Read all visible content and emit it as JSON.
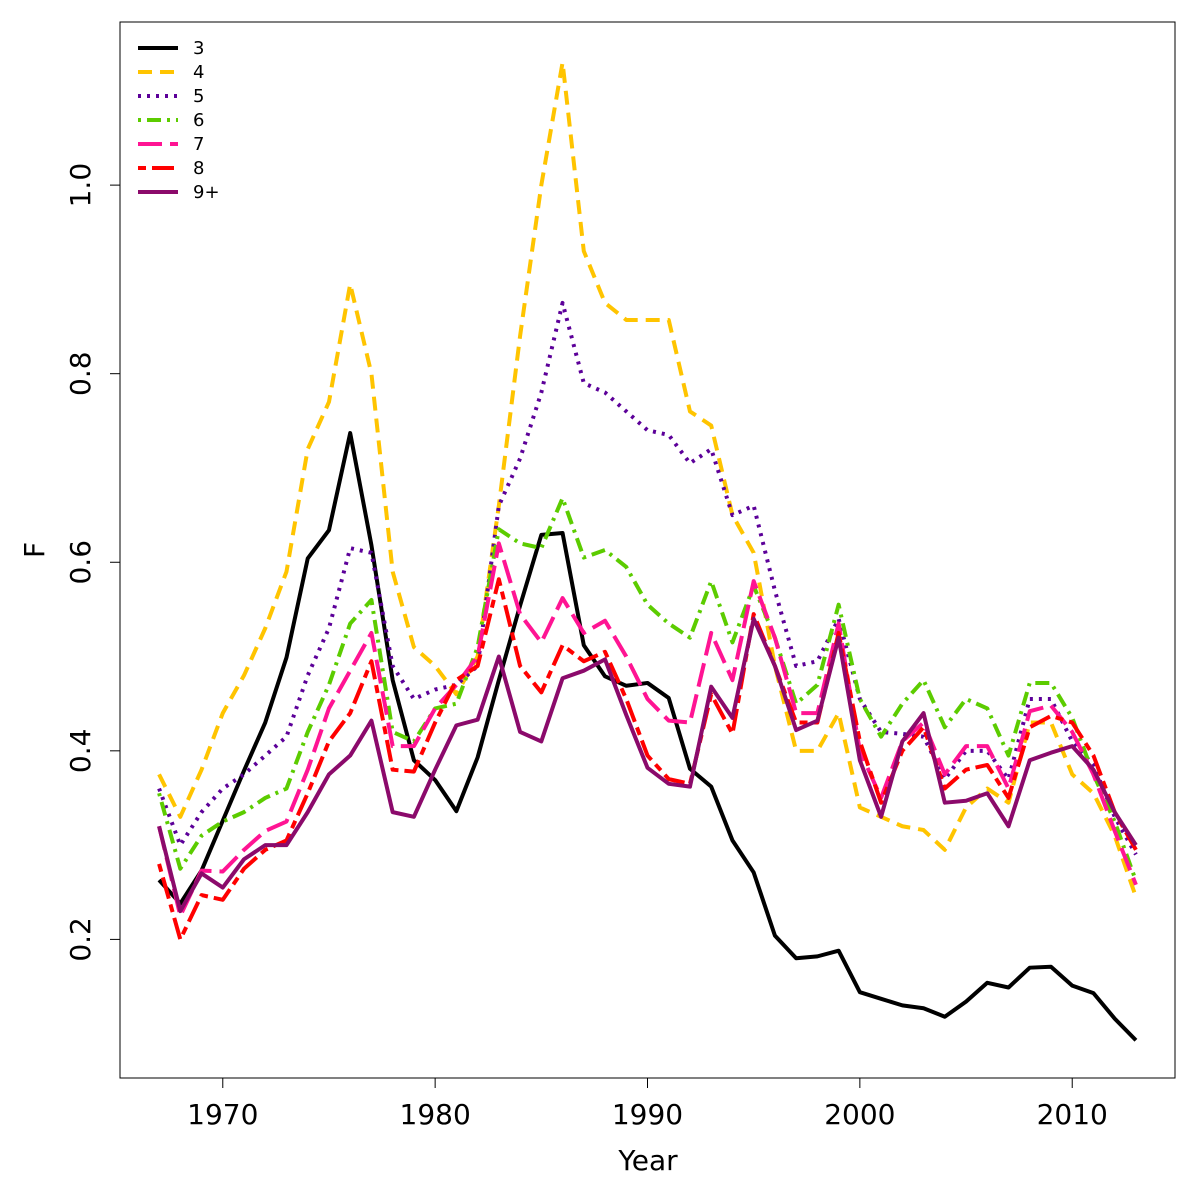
{
  "chart_data": {
    "type": "line",
    "x_label": "Year",
    "y_label": "F",
    "x": [
      1967,
      1968,
      1969,
      1970,
      1971,
      1972,
      1973,
      1974,
      1975,
      1976,
      1977,
      1978,
      1979,
      1980,
      1981,
      1982,
      1983,
      1984,
      1985,
      1986,
      1987,
      1988,
      1989,
      1990,
      1991,
      1992,
      1993,
      1994,
      1995,
      1996,
      1997,
      1998,
      1999,
      2000,
      2001,
      2002,
      2003,
      2004,
      2005,
      2006,
      2007,
      2008,
      2009,
      2010,
      2011,
      2012,
      2013
    ],
    "xlim": [
      1965.16,
      2014.84
    ],
    "xticks": [
      1970,
      1980,
      1990,
      2000,
      2010
    ],
    "ylim": [
      0.053,
      1.173
    ],
    "yticks": [
      0.2,
      0.4,
      0.6,
      0.8,
      {
        "value": 1,
        "label": "1.0"
      }
    ],
    "legend": "top-left",
    "series": [
      {
        "name": "3",
        "color": "#000000",
        "dash": "solid",
        "values": [
          0.263,
          0.238,
          0.273,
          0.326,
          0.379,
          0.43,
          0.499,
          0.604,
          0.634,
          0.737,
          0.618,
          0.475,
          0.39,
          0.369,
          0.336,
          0.393,
          0.475,
          0.554,
          0.629,
          0.631,
          0.512,
          0.479,
          0.469,
          0.472,
          0.456,
          0.381,
          0.362,
          0.305,
          0.271,
          0.204,
          0.18,
          0.182,
          0.188,
          0.144,
          0.137,
          0.13,
          0.127,
          0.118,
          0.134,
          0.154,
          0.149,
          0.17,
          0.171,
          0.151,
          0.143,
          0.116,
          0.093
        ]
      },
      {
        "name": "4",
        "color": "#ffc400",
        "dash": "dashed",
        "values": [
          0.375,
          0.33,
          0.38,
          0.44,
          0.48,
          0.53,
          0.59,
          0.72,
          0.77,
          0.895,
          0.8,
          0.59,
          0.51,
          0.49,
          0.46,
          0.5,
          0.66,
          0.84,
          1.0,
          1.13,
          0.93,
          0.875,
          0.857,
          0.857,
          0.857,
          0.76,
          0.745,
          0.65,
          0.61,
          0.49,
          0.4,
          0.4,
          0.44,
          0.34,
          0.33,
          0.32,
          0.316,
          0.295,
          0.34,
          0.36,
          0.345,
          0.43,
          0.43,
          0.375,
          0.355,
          0.31,
          0.245
        ]
      },
      {
        "name": "5",
        "color": "#5c0099",
        "dash": "dotted",
        "values": [
          0.36,
          0.3,
          0.335,
          0.36,
          0.375,
          0.395,
          0.415,
          0.48,
          0.53,
          0.615,
          0.61,
          0.49,
          0.455,
          0.465,
          0.47,
          0.49,
          0.66,
          0.71,
          0.78,
          0.875,
          0.79,
          0.78,
          0.76,
          0.74,
          0.735,
          0.705,
          0.72,
          0.65,
          0.66,
          0.57,
          0.49,
          0.495,
          0.54,
          0.455,
          0.42,
          0.418,
          0.415,
          0.37,
          0.4,
          0.4,
          0.37,
          0.455,
          0.455,
          0.41,
          0.385,
          0.33,
          0.29
        ]
      },
      {
        "name": "6",
        "color": "#5ccc00",
        "dash": "dotdash",
        "values": [
          0.355,
          0.275,
          0.31,
          0.325,
          0.335,
          0.35,
          0.36,
          0.42,
          0.47,
          0.535,
          0.56,
          0.42,
          0.41,
          0.445,
          0.45,
          0.51,
          0.635,
          0.62,
          0.615,
          0.668,
          0.605,
          0.613,
          0.595,
          0.555,
          0.535,
          0.52,
          0.58,
          0.515,
          0.575,
          0.52,
          0.45,
          0.47,
          0.555,
          0.455,
          0.415,
          0.45,
          0.475,
          0.425,
          0.455,
          0.445,
          0.395,
          0.472,
          0.472,
          0.435,
          0.375,
          0.325,
          0.262
        ]
      },
      {
        "name": "7",
        "color": "#ff1493",
        "dash": "longdash",
        "values": [
          0.32,
          0.225,
          0.273,
          0.272,
          0.295,
          0.315,
          0.325,
          0.38,
          0.445,
          0.485,
          0.525,
          0.405,
          0.405,
          0.445,
          0.47,
          0.5,
          0.62,
          0.545,
          0.515,
          0.562,
          0.525,
          0.538,
          0.5,
          0.455,
          0.432,
          0.43,
          0.525,
          0.475,
          0.58,
          0.52,
          0.44,
          0.44,
          0.535,
          0.4,
          0.35,
          0.41,
          0.43,
          0.375,
          0.405,
          0.405,
          0.36,
          0.442,
          0.448,
          0.42,
          0.375,
          0.315,
          0.258
        ]
      },
      {
        "name": "8",
        "color": "#ff0000",
        "dash": "twodash",
        "values": [
          0.28,
          0.2,
          0.247,
          0.242,
          0.275,
          0.295,
          0.305,
          0.355,
          0.41,
          0.44,
          0.495,
          0.38,
          0.378,
          0.43,
          0.475,
          0.49,
          0.582,
          0.49,
          0.462,
          0.512,
          0.495,
          0.505,
          0.455,
          0.395,
          0.37,
          0.365,
          0.46,
          0.418,
          0.545,
          0.49,
          0.43,
          0.43,
          0.525,
          0.41,
          0.345,
          0.4,
          0.425,
          0.36,
          0.38,
          0.385,
          0.35,
          0.425,
          0.437,
          0.43,
          0.395,
          0.335,
          0.295
        ]
      },
      {
        "name": "9+",
        "color": "#8b0a6b",
        "dash": "solid",
        "values": [
          0.32,
          0.23,
          0.27,
          0.255,
          0.285,
          0.3,
          0.3,
          0.335,
          0.375,
          0.395,
          0.432,
          0.335,
          0.33,
          0.38,
          0.427,
          0.433,
          0.5,
          0.42,
          0.41,
          0.477,
          0.485,
          0.497,
          0.438,
          0.382,
          0.365,
          0.362,
          0.468,
          0.435,
          0.54,
          0.49,
          0.422,
          0.432,
          0.52,
          0.39,
          0.33,
          0.41,
          0.44,
          0.345,
          0.347,
          0.355,
          0.32,
          0.39,
          0.398,
          0.405,
          0.38,
          0.335,
          0.3
        ]
      }
    ]
  }
}
